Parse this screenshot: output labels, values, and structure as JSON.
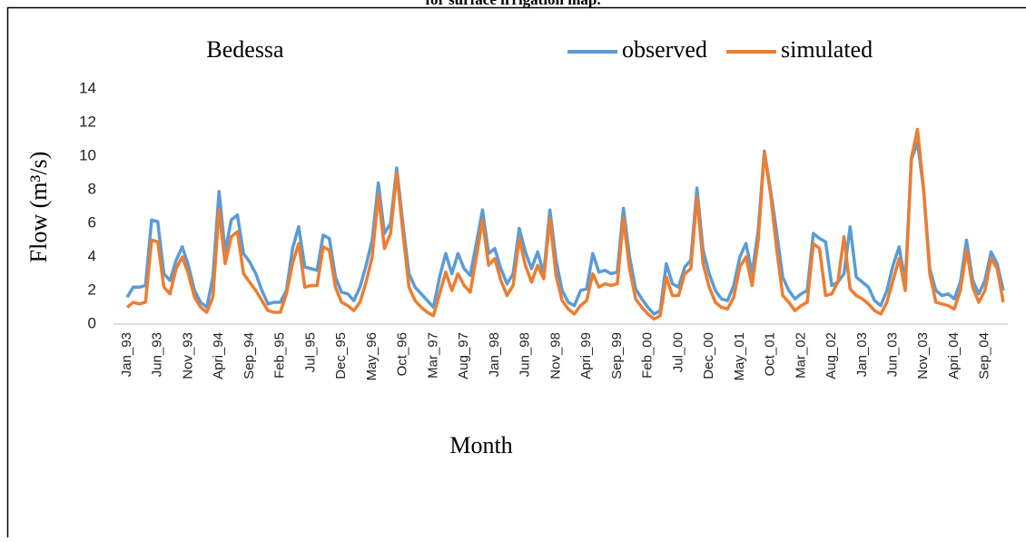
{
  "chart_data": {
    "type": "line",
    "caption": "for surface irrigation map.",
    "title": "Bedessa",
    "xlabel": "Month",
    "ylabel": "Flow (m³/s)",
    "categories": [
      "Jan_93",
      null,
      null,
      null,
      null,
      "Jun_93",
      null,
      null,
      null,
      null,
      "Nov_93",
      null,
      null,
      null,
      null,
      "Apri_94",
      null,
      null,
      null,
      null,
      "Sep_94",
      null,
      null,
      null,
      null,
      "Feb_95",
      null,
      null,
      null,
      null,
      "Jul_95",
      null,
      null,
      null,
      null,
      "Dec_95",
      null,
      null,
      null,
      null,
      "May_96",
      null,
      null,
      null,
      null,
      "Oct_96",
      null,
      null,
      null,
      null,
      "Mar_97",
      null,
      null,
      null,
      null,
      "Aug_97",
      null,
      null,
      null,
      null,
      "Jan_98",
      null,
      null,
      null,
      null,
      "Jun_98",
      null,
      null,
      null,
      null,
      "Nov_98",
      null,
      null,
      null,
      null,
      "Apri_99",
      null,
      null,
      null,
      null,
      "Sep_99",
      null,
      null,
      null,
      null,
      "Feb_00",
      null,
      null,
      null,
      null,
      "Jul_00",
      null,
      null,
      null,
      null,
      "Dec_00",
      null,
      null,
      null,
      null,
      "May_01",
      null,
      null,
      null,
      null,
      "Oct_01",
      null,
      null,
      null,
      null,
      "Mar_02",
      null,
      null,
      null,
      null,
      "Aug_02",
      null,
      null,
      null,
      null,
      "Jan_03",
      null,
      null,
      null,
      null,
      "Jun_03",
      null,
      null,
      null,
      null,
      "Nov_03",
      null,
      null,
      null,
      null,
      "Apri_04",
      null,
      null,
      null,
      null,
      "Sep_04",
      null,
      null,
      null
    ],
    "series": [
      {
        "name": "observed",
        "color": "#5b9bd5",
        "values": [
          1.6,
          2.2,
          2.2,
          2.3,
          6.2,
          6.1,
          3.0,
          2.6,
          3.8,
          4.6,
          3.5,
          2.0,
          1.3,
          1.0,
          2.8,
          7.9,
          4.3,
          6.2,
          6.5,
          4.2,
          3.7,
          3.0,
          2.0,
          1.2,
          1.3,
          1.3,
          2.0,
          4.5,
          5.8,
          3.4,
          3.3,
          3.2,
          5.3,
          5.1,
          2.8,
          1.9,
          1.8,
          1.4,
          2.2,
          3.5,
          5.0,
          8.4,
          5.4,
          6.0,
          9.3,
          6.0,
          3.0,
          2.2,
          1.8,
          1.4,
          1.0,
          2.8,
          4.2,
          3.0,
          4.2,
          3.3,
          2.9,
          4.8,
          6.8,
          4.2,
          4.5,
          3.3,
          2.4,
          3.0,
          5.7,
          4.3,
          3.3,
          4.3,
          3.0,
          6.8,
          3.8,
          2.0,
          1.3,
          1.1,
          2.0,
          2.1,
          4.2,
          3.1,
          3.2,
          3.0,
          3.1,
          6.9,
          4.0,
          2.1,
          1.5,
          1.0,
          0.6,
          0.8,
          3.6,
          2.4,
          2.2,
          3.4,
          3.8,
          8.1,
          4.4,
          3.0,
          2.0,
          1.5,
          1.4,
          2.3,
          4.0,
          4.8,
          3.0,
          5.6,
          10.3,
          8.0,
          5.5,
          2.8,
          2.0,
          1.5,
          1.8,
          2.0,
          5.4,
          5.1,
          4.9,
          2.3,
          2.5,
          3.0,
          5.8,
          2.8,
          2.5,
          2.2,
          1.4,
          1.1,
          2.0,
          3.5,
          4.6,
          2.5,
          9.8,
          10.8,
          8.0,
          3.3,
          2.0,
          1.7,
          1.8,
          1.5,
          2.5,
          5.0,
          2.6,
          1.8,
          2.6,
          4.3,
          3.6,
          2.0
        ]
      },
      {
        "name": "simulated",
        "color": "#ed7d31",
        "values": [
          1.0,
          1.3,
          1.2,
          1.3,
          5.0,
          4.9,
          2.2,
          1.8,
          3.3,
          4.0,
          3.0,
          1.6,
          1.0,
          0.7,
          1.6,
          6.8,
          3.6,
          5.2,
          5.5,
          3.0,
          2.5,
          2.0,
          1.4,
          0.8,
          0.7,
          0.7,
          1.8,
          3.6,
          4.8,
          2.2,
          2.3,
          2.3,
          4.6,
          4.4,
          2.2,
          1.3,
          1.1,
          0.8,
          1.3,
          2.5,
          4.0,
          7.7,
          4.5,
          5.4,
          9.0,
          5.5,
          2.2,
          1.4,
          1.0,
          0.7,
          0.5,
          1.8,
          3.1,
          2.0,
          3.0,
          2.3,
          1.9,
          4.0,
          6.2,
          3.5,
          3.9,
          2.6,
          1.7,
          2.3,
          5.1,
          3.5,
          2.5,
          3.5,
          2.7,
          6.3,
          2.9,
          1.4,
          0.9,
          0.6,
          1.1,
          1.4,
          3.0,
          2.2,
          2.4,
          2.3,
          2.4,
          6.3,
          3.3,
          1.5,
          1.0,
          0.6,
          0.3,
          0.5,
          2.8,
          1.7,
          1.7,
          3.0,
          3.3,
          7.6,
          3.6,
          2.2,
          1.3,
          1.0,
          0.9,
          1.6,
          3.4,
          4.0,
          2.3,
          5.0,
          10.2,
          7.8,
          4.5,
          1.7,
          1.3,
          0.8,
          1.1,
          1.3,
          4.8,
          4.5,
          1.7,
          1.8,
          2.5,
          5.2,
          2.1,
          1.7,
          1.5,
          1.2,
          0.8,
          0.6,
          1.3,
          2.6,
          3.9,
          2.0,
          9.9,
          11.6,
          8.0,
          3.0,
          1.3,
          1.2,
          1.1,
          0.9,
          2.0,
          4.4,
          2.2,
          1.3,
          2.0,
          3.9,
          3.3,
          1.3
        ]
      }
    ],
    "ylim": [
      0,
      14
    ],
    "yticks": [
      0,
      2,
      4,
      6,
      8,
      10,
      12,
      14
    ]
  }
}
